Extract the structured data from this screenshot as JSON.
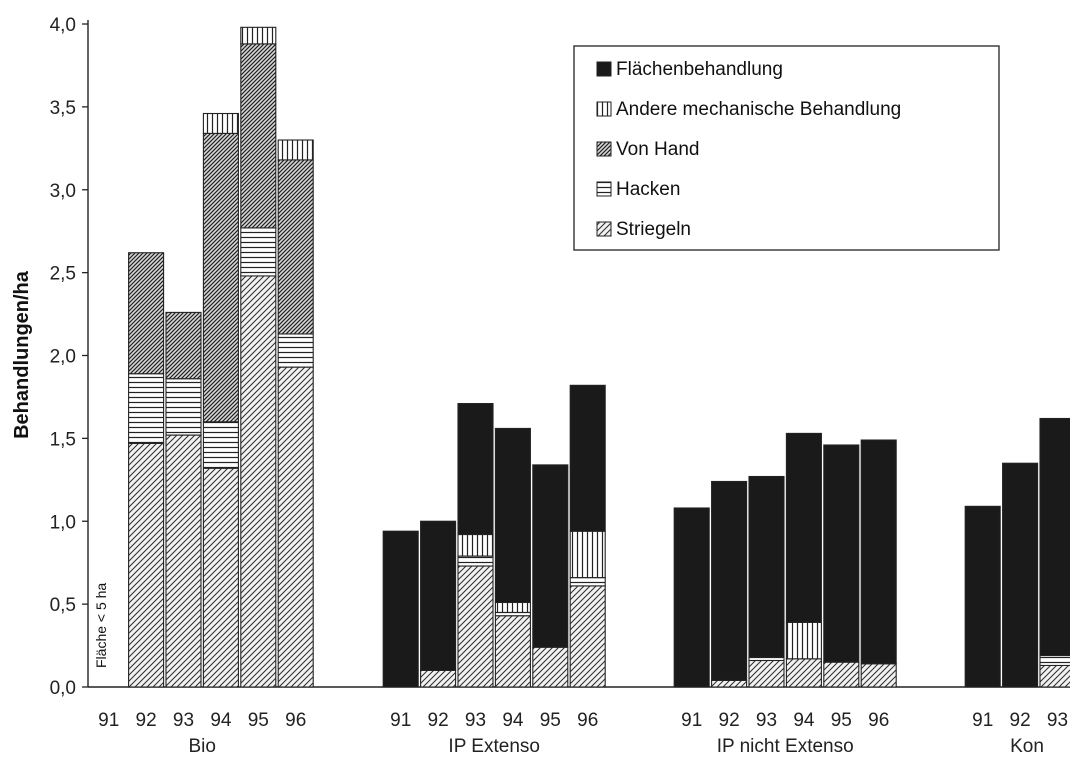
{
  "chart_data": {
    "type": "bar",
    "stacked": true,
    "ylabel": "Behandlungen/ha",
    "ylim": [
      0,
      4.0
    ],
    "yticks": [
      "0,0",
      "0,5",
      "1,0",
      "1,5",
      "2,0",
      "2,5",
      "3,0",
      "3,5",
      "4,0"
    ],
    "grid": false,
    "legend_position": "top-right",
    "annotation": "Fläche < 5 ha",
    "series": [
      {
        "name": "Flächenbehandlung",
        "pattern": "solid",
        "color": "#1a1a1a"
      },
      {
        "name": "Andere mechanische Behandlung",
        "pattern": "vertical",
        "color": "#1a1a1a"
      },
      {
        "name": "Von Hand",
        "pattern": "dense-diagonal",
        "color": "#1a1a1a"
      },
      {
        "name": "Hacken",
        "pattern": "horizontal",
        "color": "#1a1a1a"
      },
      {
        "name": "Striegeln",
        "pattern": "diagonal",
        "color": "#1a1a1a"
      }
    ],
    "groups": [
      {
        "name": "Bio",
        "categories": [
          "91",
          "92",
          "93",
          "94",
          "95",
          "96"
        ],
        "stacks": [
          null,
          {
            "Striegeln": 1.47,
            "Hacken": 0.42,
            "Von Hand": 0.73,
            "Andere mechanische Behandlung": 0,
            "Flächenbehandlung": 0
          },
          {
            "Striegeln": 1.52,
            "Hacken": 0.34,
            "Von Hand": 0.4,
            "Andere mechanische Behandlung": 0,
            "Flächenbehandlung": 0
          },
          {
            "Striegeln": 1.32,
            "Hacken": 0.28,
            "Von Hand": 1.74,
            "Andere mechanische Behandlung": 0.12,
            "Flächenbehandlung": 0
          },
          {
            "Striegeln": 2.48,
            "Hacken": 0.29,
            "Von Hand": 1.11,
            "Andere mechanische Behandlung": 0.1,
            "Flächenbehandlung": 0
          },
          {
            "Striegeln": 1.93,
            "Hacken": 0.2,
            "Von Hand": 1.05,
            "Andere mechanische Behandlung": 0.12,
            "Flächenbehandlung": 0
          }
        ]
      },
      {
        "name": "IP Extenso",
        "categories": [
          "91",
          "92",
          "93",
          "94",
          "95",
          "96"
        ],
        "stacks": [
          {
            "Striegeln": 0,
            "Hacken": 0,
            "Von Hand": 0,
            "Andere mechanische Behandlung": 0,
            "Flächenbehandlung": 0.94
          },
          {
            "Striegeln": 0.1,
            "Hacken": 0,
            "Von Hand": 0,
            "Andere mechanische Behandlung": 0,
            "Flächenbehandlung": 0.9
          },
          {
            "Striegeln": 0.73,
            "Hacken": 0.06,
            "Von Hand": 0,
            "Andere mechanische Behandlung": 0.13,
            "Flächenbehandlung": 0.79
          },
          {
            "Striegeln": 0.43,
            "Hacken": 0.02,
            "Von Hand": 0,
            "Andere mechanische Behandlung": 0.06,
            "Flächenbehandlung": 1.05
          },
          {
            "Striegeln": 0.24,
            "Hacken": 0,
            "Von Hand": 0,
            "Andere mechanische Behandlung": 0,
            "Flächenbehandlung": 1.1
          },
          {
            "Striegeln": 0.61,
            "Hacken": 0.05,
            "Von Hand": 0,
            "Andere mechanische Behandlung": 0.28,
            "Flächenbehandlung": 0.88
          }
        ]
      },
      {
        "name": "IP nicht Extenso",
        "categories": [
          "91",
          "92",
          "93",
          "94",
          "95",
          "96"
        ],
        "stacks": [
          {
            "Striegeln": 0,
            "Hacken": 0,
            "Von Hand": 0,
            "Andere mechanische Behandlung": 0,
            "Flächenbehandlung": 1.08
          },
          {
            "Striegeln": 0.04,
            "Hacken": 0,
            "Von Hand": 0,
            "Andere mechanische Behandlung": 0,
            "Flächenbehandlung": 1.2
          },
          {
            "Striegeln": 0.16,
            "Hacken": 0.02,
            "Von Hand": 0,
            "Andere mechanische Behandlung": 0,
            "Flächenbehandlung": 1.09
          },
          {
            "Striegeln": 0.17,
            "Hacken": 0,
            "Von Hand": 0,
            "Andere mechanische Behandlung": 0.22,
            "Flächenbehandlung": 1.14
          },
          {
            "Striegeln": 0.15,
            "Hacken": 0,
            "Von Hand": 0,
            "Andere mechanische Behandlung": 0,
            "Flächenbehandlung": 1.31
          },
          {
            "Striegeln": 0.14,
            "Hacken": 0,
            "Von Hand": 0,
            "Andere mechanische Behandlung": 0,
            "Flächenbehandlung": 1.35
          }
        ]
      },
      {
        "name": "Kon",
        "categories": [
          "91",
          "92",
          "93"
        ],
        "stacks": [
          {
            "Striegeln": 0,
            "Hacken": 0,
            "Von Hand": 0,
            "Andere mechanische Behandlung": 0,
            "Flächenbehandlung": 1.09
          },
          {
            "Striegeln": 0,
            "Hacken": 0,
            "Von Hand": 0,
            "Andere mechanische Behandlung": 0,
            "Flächenbehandlung": 1.35
          },
          {
            "Striegeln": 0.13,
            "Hacken": 0.06,
            "Von Hand": 0,
            "Andere mechanische Behandlung": 0,
            "Flächenbehandlung": 1.43
          }
        ]
      }
    ]
  }
}
